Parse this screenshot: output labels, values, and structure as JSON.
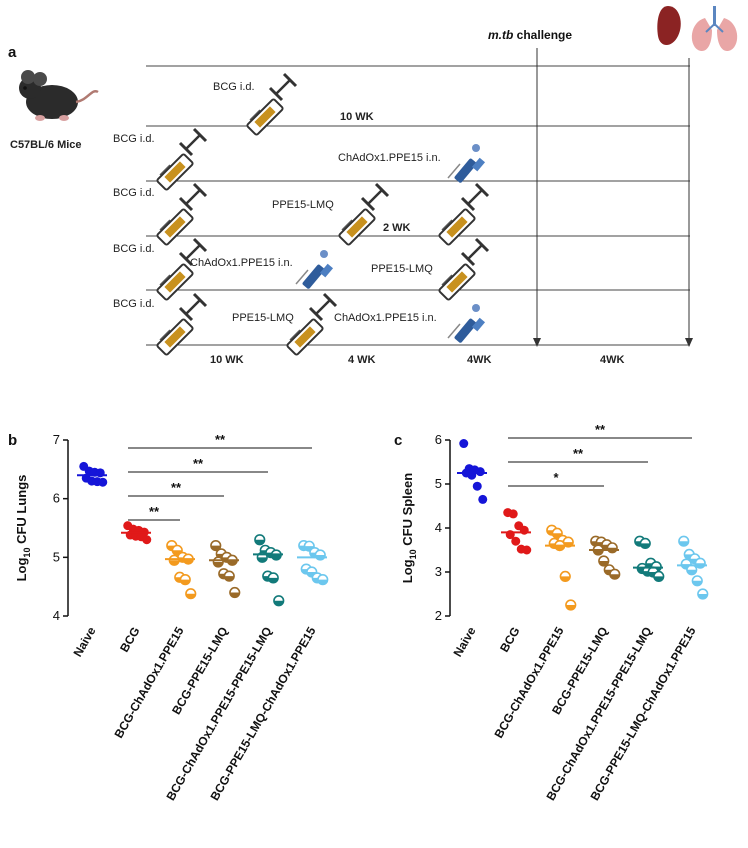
{
  "panel_a": {
    "label": "a",
    "mouse_label": "C57BL/6 Mice",
    "challenge_label_italic": "m.tb",
    "challenge_label_rest": " challenge",
    "rows": [
      {
        "labels": [
          "BCG i.d."
        ]
      },
      {
        "labels": [
          "BCG i.d.",
          "ChAdOx1.PPE15 i.n."
        ],
        "above": "10 WK"
      },
      {
        "labels": [
          "BCG i.d.",
          "PPE15-LMQ"
        ]
      },
      {
        "labels": [
          "BCG i.d.",
          "ChAdOx1.PPE15 i.n.",
          "PPE15-LMQ"
        ],
        "above": "2 WK"
      },
      {
        "labels": [
          "BCG i.d.",
          "PPE15-LMQ",
          "ChAdOx1.PPE15 i.n."
        ]
      }
    ],
    "timeline": [
      "10 WK",
      "4 WK",
      "4WK",
      "4WK"
    ],
    "colors": {
      "syringe": "#c8911e",
      "pipette": "#2f5c9b",
      "spleen": "#8b2323",
      "lung": "#e9a6a6"
    }
  },
  "chart_data": [
    {
      "panel": "b",
      "type": "scatter",
      "ylabel_prefix": "Log",
      "ylabel_sub": "10",
      "ylabel_suffix": " CFU Lungs",
      "ylim": [
        4,
        7
      ],
      "yticks": [
        "4",
        "5",
        "6",
        "7"
      ],
      "categories": [
        "Naive",
        "BCG",
        "BCG-ChAdOx1.PPE15",
        "BCG-PPE15-LMQ",
        "BCG-ChAdOx1.PPE15-PPE15-LMQ",
        "BCG-PPE15-LMQ-ChAdOx1.PPE15"
      ],
      "colors": [
        "#1515d8",
        "#e01919",
        "#f39a1e",
        "#9a6a28",
        "#127a7a",
        "#6cc7ee"
      ],
      "points": [
        [
          6.55,
          6.47,
          6.45,
          6.44,
          6.35,
          6.3,
          6.29,
          6.28
        ],
        [
          5.54,
          5.48,
          5.46,
          5.43,
          5.38,
          5.36,
          5.35,
          5.3
        ],
        [
          5.2,
          5.12,
          5.0,
          4.97,
          4.95,
          4.66,
          4.62,
          4.38
        ],
        [
          5.2,
          5.06,
          5.0,
          4.95,
          4.92,
          4.72,
          4.68,
          4.4
        ],
        [
          5.3,
          5.12,
          5.08,
          5.04,
          5.0,
          4.68,
          4.65,
          4.26
        ],
        [
          5.2,
          5.19,
          5.08,
          5.04,
          4.8,
          4.75,
          4.65,
          4.62
        ]
      ],
      "means": [
        6.4,
        5.42,
        4.97,
        4.95,
        5.05,
        5.0
      ],
      "comparisons": [
        {
          "from": 1,
          "to": 2,
          "label": "**"
        },
        {
          "from": 1,
          "to": 3,
          "label": "**"
        },
        {
          "from": 1,
          "to": 4,
          "label": "**"
        },
        {
          "from": 1,
          "to": 5,
          "label": "**"
        }
      ]
    },
    {
      "panel": "c",
      "type": "scatter",
      "ylabel_prefix": "Log",
      "ylabel_sub": "10",
      "ylabel_suffix": " CFU Spleen",
      "ylim": [
        2,
        6
      ],
      "yticks": [
        "2",
        "3",
        "4",
        "5",
        "6"
      ],
      "categories": [
        "Naive",
        "BCG",
        "BCG-ChAdOx1.PPE15",
        "BCG-PPE15-LMQ",
        "BCG-ChAdOx1.PPE15-PPE15-LMQ",
        "BCG-PPE15-LMQ-ChAdOx1.PPE15"
      ],
      "colors": [
        "#1515d8",
        "#e01919",
        "#f39a1e",
        "#9a6a28",
        "#127a7a",
        "#6cc7ee"
      ],
      "points": [
        [
          5.92,
          5.35,
          5.32,
          5.28,
          5.25,
          5.2,
          4.95,
          4.65
        ],
        [
          4.35,
          4.32,
          4.05,
          3.95,
          3.85,
          3.7,
          3.52,
          3.5
        ],
        [
          3.95,
          3.88,
          3.72,
          3.68,
          3.65,
          3.6,
          2.9,
          2.25
        ],
        [
          3.7,
          3.68,
          3.62,
          3.55,
          3.5,
          3.25,
          3.05,
          2.95
        ],
        [
          3.7,
          3.65,
          3.2,
          3.12,
          3.08,
          3.02,
          3.0,
          2.9
        ],
        [
          3.7,
          3.4,
          3.3,
          3.2,
          3.18,
          3.05,
          2.8,
          2.5
        ]
      ],
      "means": [
        5.25,
        3.9,
        3.6,
        3.5,
        3.1,
        3.15
      ],
      "comparisons": [
        {
          "from": 1,
          "to": 3,
          "label": "*"
        },
        {
          "from": 1,
          "to": 4,
          "label": "**"
        },
        {
          "from": 1,
          "to": 5,
          "label": "**"
        }
      ]
    }
  ]
}
